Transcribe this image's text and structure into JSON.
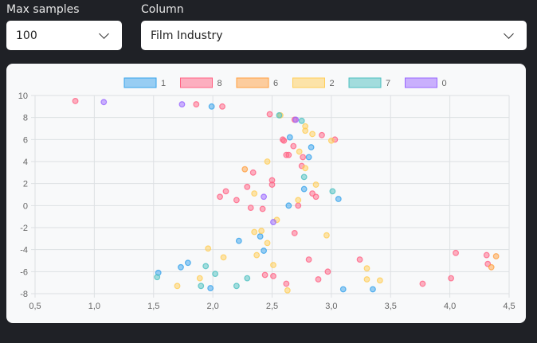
{
  "controls": {
    "max_samples": {
      "label": "Max samples",
      "value": "100"
    },
    "column": {
      "label": "Column",
      "value": "Film Industry"
    }
  },
  "chart_data": {
    "type": "scatter",
    "xlim": [
      0.5,
      4.5
    ],
    "ylim": [
      -8,
      10
    ],
    "xticks": [
      "0,5",
      "1,0",
      "1,5",
      "2,0",
      "2,5",
      "3,0",
      "3,5",
      "4,0",
      "4,5"
    ],
    "xtick_values": [
      0.5,
      1.0,
      1.5,
      2.0,
      2.5,
      3.0,
      3.5,
      4.0,
      4.5
    ],
    "yticks": [
      "10",
      "8",
      "6",
      "4",
      "2",
      "0",
      "-2",
      "-4",
      "-6",
      "-8"
    ],
    "ytick_values": [
      10,
      8,
      6,
      4,
      2,
      0,
      -2,
      -4,
      -6,
      -8
    ],
    "grid": true,
    "legend_position": "top",
    "series": [
      {
        "name": "1",
        "color": "#36a2eb",
        "points": [
          [
            1.99,
            9.0
          ],
          [
            2.65,
            6.2
          ],
          [
            2.83,
            5.3
          ],
          [
            2.81,
            4.4
          ],
          [
            2.77,
            1.5
          ],
          [
            3.06,
            0.6
          ],
          [
            2.64,
            0.0
          ],
          [
            2.22,
            -3.2
          ],
          [
            2.4,
            -2.8
          ],
          [
            2.43,
            -4.1
          ],
          [
            1.79,
            -5.2
          ],
          [
            1.73,
            -5.6
          ],
          [
            1.54,
            -6.1
          ],
          [
            1.98,
            -7.5
          ],
          [
            3.1,
            -7.6
          ],
          [
            3.35,
            -7.6
          ]
        ]
      },
      {
        "name": "8",
        "color": "#ff6384",
        "points": [
          [
            0.84,
            9.5
          ],
          [
            1.86,
            9.2
          ],
          [
            2.08,
            9.0
          ],
          [
            2.48,
            8.3
          ],
          [
            2.69,
            7.8
          ],
          [
            2.92,
            6.4
          ],
          [
            3.03,
            6.0
          ],
          [
            2.59,
            6.0
          ],
          [
            2.6,
            5.9
          ],
          [
            2.68,
            5.4
          ],
          [
            2.62,
            4.6
          ],
          [
            2.64,
            4.6
          ],
          [
            2.76,
            4.4
          ],
          [
            2.75,
            3.6
          ],
          [
            2.34,
            3.0
          ],
          [
            2.5,
            2.3
          ],
          [
            2.5,
            1.9
          ],
          [
            2.29,
            1.7
          ],
          [
            2.84,
            1.1
          ],
          [
            2.87,
            0.8
          ],
          [
            2.11,
            1.3
          ],
          [
            2.06,
            0.8
          ],
          [
            2.2,
            0.5
          ],
          [
            2.32,
            -0.2
          ],
          [
            2.42,
            -0.3
          ],
          [
            2.72,
            0.0
          ],
          [
            2.69,
            -2.5
          ],
          [
            2.81,
            -4.9
          ],
          [
            3.24,
            -4.9
          ],
          [
            4.05,
            -4.3
          ],
          [
            4.31,
            -4.5
          ],
          [
            4.32,
            -5.3
          ],
          [
            2.44,
            -6.3
          ],
          [
            2.51,
            -6.4
          ],
          [
            2.97,
            -6.0
          ],
          [
            2.89,
            -6.7
          ],
          [
            2.62,
            -7.1
          ],
          [
            3.77,
            -7.1
          ],
          [
            4.01,
            -6.6
          ]
        ]
      },
      {
        "name": "6",
        "color": "#ff9f40",
        "points": [
          [
            2.27,
            3.3
          ],
          [
            4.39,
            -4.6
          ],
          [
            4.35,
            -5.6
          ]
        ]
      },
      {
        "name": "2",
        "color": "#ffcd56",
        "points": [
          [
            2.46,
            4.0
          ],
          [
            2.57,
            8.2
          ],
          [
            2.78,
            7.2
          ],
          [
            2.78,
            6.8
          ],
          [
            2.84,
            6.5
          ],
          [
            3.0,
            5.9
          ],
          [
            2.73,
            4.9
          ],
          [
            2.78,
            3.4
          ],
          [
            2.87,
            1.9
          ],
          [
            2.72,
            0.5
          ],
          [
            2.35,
            1.1
          ],
          [
            2.54,
            -1.3
          ],
          [
            2.35,
            -2.4
          ],
          [
            2.41,
            -2.3
          ],
          [
            2.46,
            -3.4
          ],
          [
            2.37,
            -4.5
          ],
          [
            1.96,
            -3.9
          ],
          [
            2.09,
            -4.7
          ],
          [
            2.51,
            -5.4
          ],
          [
            3.3,
            -5.7
          ],
          [
            2.96,
            -2.7
          ],
          [
            1.89,
            -6.6
          ],
          [
            1.7,
            -7.3
          ],
          [
            3.3,
            -6.7
          ],
          [
            3.41,
            -6.8
          ],
          [
            2.63,
            -7.7
          ]
        ]
      },
      {
        "name": "7",
        "color": "#4bc0c0",
        "points": [
          [
            2.56,
            8.2
          ],
          [
            2.75,
            7.7
          ],
          [
            2.77,
            2.6
          ],
          [
            3.01,
            1.3
          ],
          [
            1.53,
            -6.5
          ],
          [
            1.94,
            -5.5
          ],
          [
            2.02,
            -6.2
          ],
          [
            1.9,
            -7.3
          ],
          [
            2.29,
            -6.6
          ],
          [
            2.2,
            -7.3
          ]
        ]
      },
      {
        "name": "0",
        "color": "#9966ff",
        "points": [
          [
            1.08,
            9.4
          ],
          [
            1.74,
            9.2
          ],
          [
            2.43,
            0.8
          ],
          [
            2.51,
            -1.5
          ],
          [
            2.7,
            7.8
          ]
        ]
      }
    ]
  }
}
